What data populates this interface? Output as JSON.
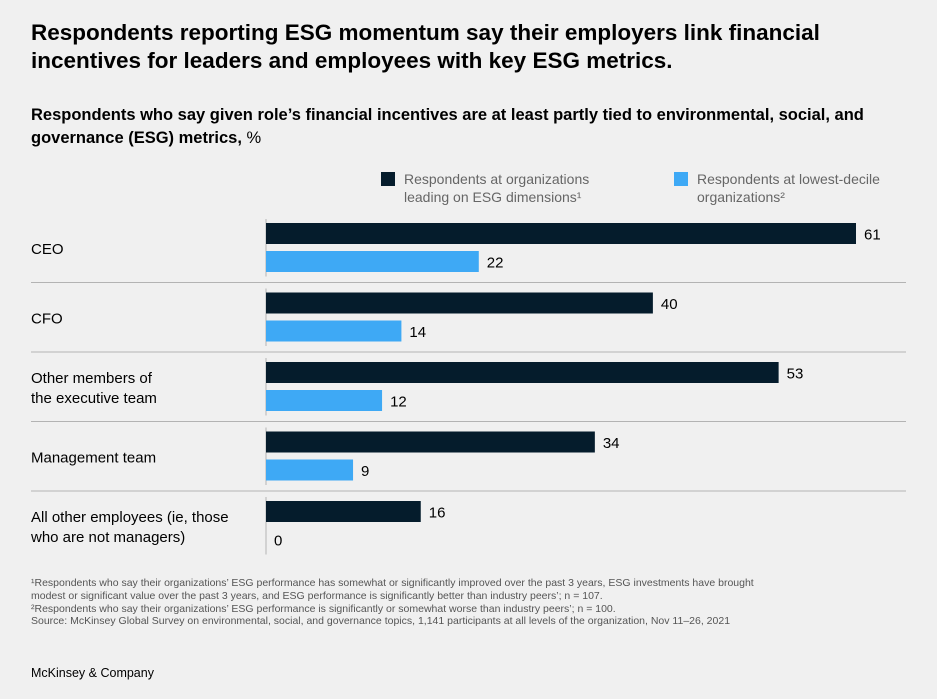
{
  "title": "Respondents reporting ESG momentum say their employers link financial incentives for leaders and employees with key ESG metrics.",
  "subtitle": {
    "bold": "Respondents who say given role’s financial incentives are at least partly tied to environmental, social, and governance (ESG) metrics,",
    "unit": " %"
  },
  "colors": {
    "leading": "#051c2c",
    "lowest": "#3ea9f5",
    "divider": "#b3b3b3",
    "label": "#000000"
  },
  "chart_data": {
    "type": "bar",
    "orientation": "horizontal",
    "title": "Respondents who say given role’s financial incentives are at least partly tied to environmental, social, and governance (ESG) metrics, %",
    "categories": [
      "CEO",
      "CFO",
      "Other members of the executive team",
      "Management team",
      "All other employees (ie, those who are not managers)"
    ],
    "category_lines": [
      [
        "CEO"
      ],
      [
        "CFO"
      ],
      [
        "Other members of",
        "the executive team"
      ],
      [
        "Management team"
      ],
      [
        "All other employees (ie, those",
        "who are not managers)"
      ]
    ],
    "series": [
      {
        "name": "Respondents at organizations leading on ESG dimensions¹",
        "color": "#051c2c",
        "values": [
          61,
          40,
          53,
          34,
          16
        ]
      },
      {
        "name": "Respondents at lowest-decile organizations²",
        "color": "#3ea9f5",
        "values": [
          22,
          14,
          12,
          9,
          0
        ]
      }
    ],
    "xlim": [
      0,
      61
    ],
    "legend_position": "top-right",
    "grid": false
  },
  "legend": {
    "leading": "Respondents at organizations leading on ESG dimensions¹",
    "lowest": "Respondents at lowest-decile organizations²"
  },
  "footnotes": [
    "¹Respondents who say their organizations’ ESG performance has somewhat or significantly improved over the past 3 years, ESG investments have brought",
    "  modest or significant value over the past 3 years, and ESG performance is significantly better than industry peers’; n = 107.",
    "²Respondents who say their organizations’ ESG performance is significantly or somewhat worse than industry peers’; n = 100.",
    "  Source: McKinsey Global Survey on environmental, social, and governance topics, 1,141 participants at all levels of the organization, Nov 11–26, 2021"
  ],
  "brand": "McKinsey & Company"
}
